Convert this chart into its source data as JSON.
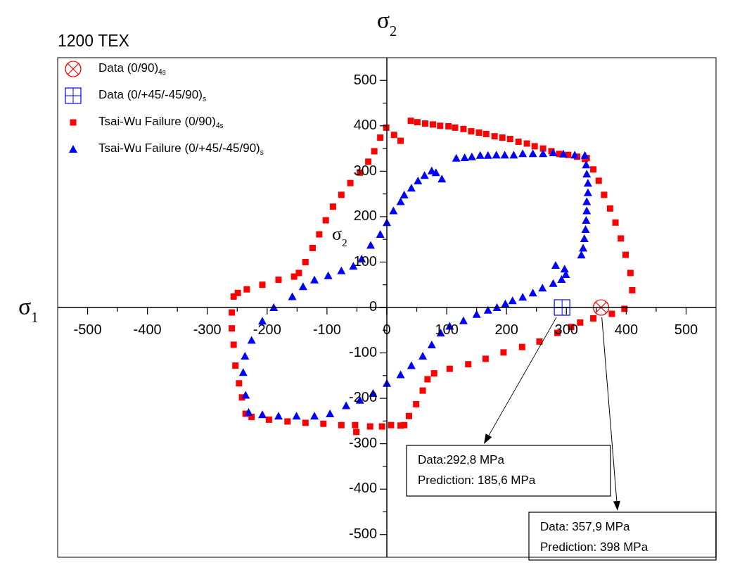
{
  "chart_data": {
    "type": "scatter",
    "title": "1200 TEX",
    "xlabel": "σ$_{2}$",
    "ylabel": "σ$_{1}$",
    "legend": "top left",
    "xlim": [
      -550,
      550
    ],
    "ylim": [
      -550,
      550
    ],
    "xticks": [
      -500,
      {
        "value": -450,
        "label": null
      },
      -400,
      {
        "value": -350,
        "label": null
      },
      -300,
      {
        "value": -250,
        "label": null
      },
      -200,
      {
        "value": -150,
        "label": null
      },
      -100,
      {
        "value": -50,
        "label": null
      },
      0,
      {
        "value": 50,
        "label": null
      },
      100,
      {
        "value": 150,
        "label": null
      },
      200,
      {
        "value": 250,
        "label": null
      },
      300,
      {
        "value": 350,
        "label": null
      },
      400,
      {
        "value": 450,
        "label": null
      },
      500
    ],
    "yticks": [
      -500,
      {
        "value": -450,
        "label": null
      },
      -400,
      {
        "value": -350,
        "label": null
      },
      -300,
      {
        "value": -250,
        "label": null
      },
      -200,
      {
        "value": -150,
        "label": null
      },
      -100,
      {
        "value": -50,
        "label": null
      },
      0,
      {
        "value": 50,
        "label": null
      },
      100,
      {
        "value": 150,
        "label": null
      },
      200,
      {
        "value": 250,
        "label": null
      },
      300,
      {
        "value": 350,
        "label": null
      },
      400,
      {
        "value": 450,
        "label": null
      },
      500
    ],
    "series": [
      {
        "name": "Data (0/90)$_{4s}$",
        "color": "#ff0000",
        "marker": "circle",
        "x": [
          357.9
        ],
        "values": [
          0
        ]
      },
      {
        "name": "Data (0/+45/-45/90)$_{s}$",
        "color": "#0000ff",
        "marker": "square",
        "x": [
          292.8
        ],
        "values": [
          0
        ]
      },
      {
        "name": "Tsai-Wu Failure (0/90)$_{4s}$",
        "color": "#ff0000",
        "marker": "square",
        "x": [
          40,
          51,
          64,
          77,
          89,
          103,
          114,
          128,
          141,
          154,
          166,
          180,
          193,
          206,
          220,
          234,
          247,
          261,
          275,
          288,
          303,
          318,
          331,
          334,
          345,
          354,
          363,
          373,
          382,
          391,
          399,
          407,
          410,
          397,
          376,
          345,
          323,
          308,
          285,
          255,
          226,
          195,
          165,
          136,
          105,
          79,
          68,
          60,
          49,
          37,
          29,
          7,
          23,
          -8,
          -28,
          -51,
          -53,
          -76,
          -106,
          -136,
          -166,
          -197,
          -226,
          -236,
          -242,
          -247,
          -253,
          -256,
          -259,
          -259,
          -256,
          -249,
          -234,
          -208,
          -181,
          -155,
          -147,
          -136,
          -124,
          -113,
          -102,
          -90,
          -76,
          -61,
          -45,
          -31,
          -21,
          -11,
          -1,
          12,
          23
        ],
        "values": [
          411,
          408,
          405,
          403,
          400,
          399,
          396,
          393,
          388,
          385,
          382,
          377,
          374,
          371,
          365,
          361,
          355,
          350,
          344,
          338,
          336,
          332,
          327,
          329,
          304,
          279,
          248,
          218,
          187,
          152,
          116,
          76,
          38,
          -3,
          -14,
          -24,
          -33,
          -43,
          -56,
          -75,
          -87,
          -99,
          -113,
          -125,
          -135,
          -145,
          -158,
          -183,
          -213,
          -239,
          -259,
          -259,
          -260,
          -262,
          -262,
          -274,
          -259,
          -259,
          -256,
          -254,
          -251,
          -247,
          -241,
          -234,
          -198,
          -167,
          -128,
          -82,
          -46,
          -11,
          24,
          32,
          40,
          50,
          61,
          68,
          76,
          100,
          131,
          161,
          192,
          222,
          248,
          274,
          297,
          321,
          344,
          374,
          396,
          380,
          367
        ]
      },
      {
        "name": "Tsai-Wu Failure (0/+45/-45/90)$_{s}$",
        "color": "#0000ff",
        "marker": "triangle",
        "x": [
          116,
          130,
          142,
          156,
          169,
          183,
          197,
          212,
          227,
          244,
          261,
          278,
          295,
          314,
          331,
          333,
          334,
          336,
          336,
          334,
          334,
          333,
          332,
          330,
          328,
          325,
          282,
          297,
          299,
          292,
          278,
          260,
          244,
          227,
          210,
          198,
          184,
          169,
          150,
          128,
          105,
          90,
          75,
          60,
          41,
          23,
          0,
          -23,
          -45,
          -68,
          -95,
          -121,
          -151,
          -181,
          -208,
          -231,
          -236,
          -240,
          -237,
          -226,
          -208,
          -189,
          -158,
          -140,
          -121,
          -98,
          -76,
          -56,
          -42,
          -27,
          -11,
          0,
          11,
          23,
          29,
          41,
          52,
          63,
          75,
          82,
          92
        ],
        "values": [
          329,
          330,
          332,
          335,
          335,
          336,
          336,
          336,
          339,
          339,
          339,
          341,
          338,
          336,
          335,
          314,
          294,
          274,
          253,
          233,
          213,
          192,
          172,
          152,
          131,
          116,
          93,
          85,
          73,
          62,
          53,
          43,
          32,
          23,
          15,
          8,
          0,
          -6,
          -15,
          -29,
          -41,
          -56,
          -82,
          -107,
          -128,
          -148,
          -167,
          -189,
          -204,
          -216,
          -234,
          -239,
          -239,
          -239,
          -236,
          -231,
          -193,
          -143,
          -107,
          -72,
          -30,
          0,
          24,
          46,
          61,
          70,
          81,
          91,
          107,
          137,
          161,
          187,
          213,
          233,
          248,
          263,
          279,
          291,
          301,
          297,
          283
        ]
      }
    ],
    "annotations": [
      "Data:292,8  MPa\nPrediction: 185,6  MPa",
      "Data: 357,9  MPa\nPrediction: 398 MPa",
      "σ$_{2}$"
    ]
  }
}
